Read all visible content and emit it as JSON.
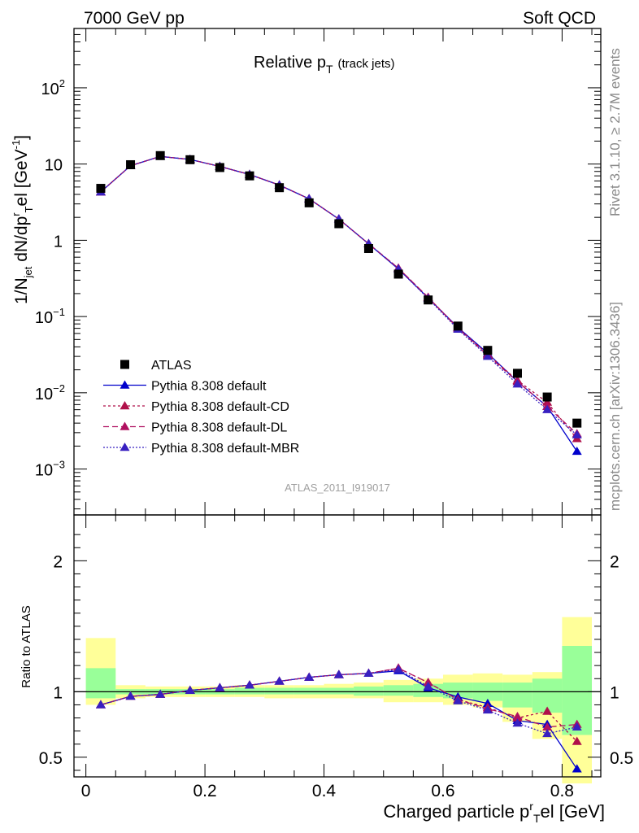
{
  "header": {
    "left": "7000 GeV pp",
    "right": "Soft QCD",
    "side_top": "Rivet 3.1.10, ≥ 2.7M events",
    "side_bottom": "mcplots.cern.ch [arXiv:1306.3436]"
  },
  "chart_data": [
    {
      "type": "line",
      "title_main": "Relative p",
      "title_sub": "T",
      "title_extra": "(track jets)",
      "ylabel_parts": [
        "1/N",
        "jet",
        " dN/dp",
        "r",
        "T",
        "el [GeV",
        "-1",
        "]"
      ],
      "watermark": "ATLAS_2011_I919017",
      "yscale": "log",
      "ylim": [
        0.00025,
        600
      ],
      "xlim": [
        -0.02,
        0.865
      ],
      "yticks_major": [
        {
          "v": 0.001,
          "base": "10",
          "exp": "−3"
        },
        {
          "v": 0.01,
          "base": "10",
          "exp": "−2"
        },
        {
          "v": 0.1,
          "base": "10",
          "exp": "−1"
        },
        {
          "v": 1,
          "base": "1",
          "exp": ""
        },
        {
          "v": 10,
          "base": "10",
          "exp": ""
        },
        {
          "v": 100,
          "base": "10",
          "exp": "2"
        }
      ],
      "x": [
        0.025,
        0.075,
        0.125,
        0.175,
        0.225,
        0.275,
        0.325,
        0.375,
        0.425,
        0.475,
        0.525,
        0.575,
        0.625,
        0.675,
        0.725,
        0.775,
        0.825
      ],
      "atlas": [
        4.8,
        9.8,
        12.9,
        11.4,
        9.0,
        7.0,
        4.9,
        3.1,
        1.65,
        0.78,
        0.36,
        0.165,
        0.075,
        0.036,
        0.018,
        0.0088,
        0.004
      ],
      "legend": [
        {
          "label": "ATLAS",
          "color": "#000000",
          "dash": "",
          "marker": "square"
        },
        {
          "label": "Pythia 8.308 default",
          "color": "#0000cc",
          "dash": "",
          "marker": "triangle"
        },
        {
          "label": "Pythia 8.308 default-CD",
          "color": "#b0104a",
          "dash": "3,3",
          "marker": "triangle"
        },
        {
          "label": "Pythia 8.308 default-DL",
          "color": "#b01060",
          "dash": "7,4",
          "marker": "triangle"
        },
        {
          "label": "Pythia 8.308 default-MBR",
          "color": "#3820c0",
          "dash": "2,2",
          "marker": "triangle"
        }
      ],
      "series": [
        {
          "name": "Pythia 8.308 default",
          "values": [
            4.3,
            9.5,
            12.6,
            11.5,
            9.3,
            7.3,
            5.3,
            3.5,
            1.9,
            0.9,
            0.42,
            0.175,
            0.072,
            0.033,
            0.014,
            0.0066,
            0.0017
          ]
        },
        {
          "name": "Pythia 8.308 default-CD",
          "values": [
            4.3,
            9.5,
            12.6,
            11.5,
            9.3,
            7.3,
            5.3,
            3.5,
            1.9,
            0.9,
            0.43,
            0.178,
            0.071,
            0.032,
            0.0145,
            0.0075,
            0.0025
          ]
        },
        {
          "name": "Pythia 8.308 default-DL",
          "values": [
            4.3,
            9.5,
            12.6,
            11.5,
            9.3,
            7.3,
            5.3,
            3.5,
            1.9,
            0.9,
            0.43,
            0.178,
            0.07,
            0.031,
            0.014,
            0.0066,
            0.0029
          ]
        },
        {
          "name": "Pythia 8.308 default-MBR",
          "values": [
            4.3,
            9.5,
            12.6,
            11.5,
            9.3,
            7.3,
            5.3,
            3.5,
            1.9,
            0.9,
            0.42,
            0.172,
            0.068,
            0.03,
            0.013,
            0.006,
            0.0028
          ]
        }
      ]
    },
    {
      "type": "line",
      "ylabel": "Ratio to ATLAS",
      "xlabel_parts": [
        "Charged particle p",
        "r",
        "T",
        "el [GeV]"
      ],
      "ylim": [
        0.35,
        2.35
      ],
      "xlim": [
        -0.02,
        0.865
      ],
      "xticks": [
        0,
        0.2,
        0.4,
        0.6,
        0.8
      ],
      "xtick_labels": [
        "0",
        "0.2",
        "0.4",
        "0.6",
        "0.8"
      ],
      "yticks": [
        0.5,
        1,
        2
      ],
      "ytick_labels": [
        "0.5",
        "1",
        "2"
      ],
      "bin_edges": [
        0,
        0.05,
        0.1,
        0.15,
        0.2,
        0.25,
        0.3,
        0.35,
        0.4,
        0.45,
        0.5,
        0.55,
        0.6,
        0.65,
        0.7,
        0.75,
        0.8,
        0.85
      ],
      "band_yellow": [
        [
          0.9,
          1.41
        ],
        [
          0.95,
          1.05
        ],
        [
          0.96,
          1.04
        ],
        [
          0.96,
          1.04
        ],
        [
          0.96,
          1.04
        ],
        [
          0.96,
          1.05
        ],
        [
          0.95,
          1.05
        ],
        [
          0.95,
          1.05
        ],
        [
          0.95,
          1.06
        ],
        [
          0.95,
          1.07
        ],
        [
          0.92,
          1.09
        ],
        [
          0.92,
          1.1
        ],
        [
          0.9,
          1.13
        ],
        [
          0.88,
          1.14
        ],
        [
          0.77,
          1.13
        ],
        [
          0.64,
          1.15
        ],
        [
          0.3,
          1.57
        ]
      ],
      "band_green": [
        [
          0.95,
          1.18
        ],
        [
          0.98,
          1.02
        ],
        [
          0.98,
          1.02
        ],
        [
          0.98,
          1.02
        ],
        [
          0.98,
          1.02
        ],
        [
          0.98,
          1.03
        ],
        [
          0.98,
          1.03
        ],
        [
          0.98,
          1.03
        ],
        [
          0.98,
          1.03
        ],
        [
          0.97,
          1.04
        ],
        [
          0.97,
          1.05
        ],
        [
          0.96,
          1.06
        ],
        [
          0.95,
          1.07
        ],
        [
          0.93,
          1.07
        ],
        [
          0.88,
          1.07
        ],
        [
          0.84,
          1.1
        ],
        [
          0.67,
          1.35
        ]
      ],
      "x": [
        0.025,
        0.075,
        0.125,
        0.175,
        0.225,
        0.275,
        0.325,
        0.375,
        0.425,
        0.475,
        0.525,
        0.575,
        0.625,
        0.675,
        0.725,
        0.775,
        0.825
      ],
      "series": [
        {
          "name": "Pythia 8.308 default",
          "values": [
            0.9,
            0.965,
            0.98,
            1.01,
            1.03,
            1.05,
            1.08,
            1.11,
            1.13,
            1.14,
            1.16,
            1.03,
            0.96,
            0.91,
            0.78,
            0.75,
            0.41
          ]
        },
        {
          "name": "Pythia 8.308 default-CD",
          "values": [
            0.9,
            0.965,
            0.98,
            1.01,
            1.03,
            1.05,
            1.08,
            1.11,
            1.13,
            1.14,
            1.18,
            1.07,
            0.94,
            0.88,
            0.8,
            0.85,
            0.62
          ]
        },
        {
          "name": "Pythia 8.308 default-DL",
          "values": [
            0.9,
            0.965,
            0.98,
            1.01,
            1.03,
            1.05,
            1.08,
            1.11,
            1.13,
            1.14,
            1.18,
            1.07,
            0.94,
            0.87,
            0.81,
            0.73,
            0.75
          ]
        },
        {
          "name": "Pythia 8.308 default-MBR",
          "values": [
            0.9,
            0.965,
            0.98,
            1.01,
            1.03,
            1.05,
            1.08,
            1.11,
            1.13,
            1.14,
            1.17,
            1.04,
            0.93,
            0.86,
            0.76,
            0.68,
            0.73
          ]
        }
      ]
    }
  ]
}
